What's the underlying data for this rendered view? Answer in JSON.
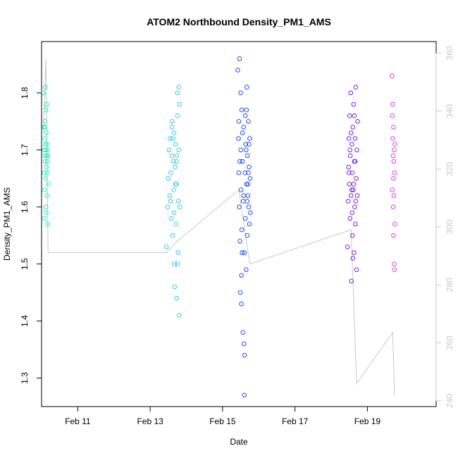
{
  "chart_data": {
    "type": "scatter",
    "title": "ATOM2 Northbound Density_PM1_AMS",
    "xlabel": "Date",
    "ylabel": "Density_PM1_AMS",
    "xlim": [
      10.0,
      20.9
    ],
    "ylim": [
      1.25,
      1.89
    ],
    "y2lim": [
      238,
      364
    ],
    "x_ticks": [
      {
        "value": 11,
        "label": "Feb 11"
      },
      {
        "value": 13,
        "label": "Feb 13"
      },
      {
        "value": 15,
        "label": "Feb 15"
      },
      {
        "value": 17,
        "label": "Feb 17"
      },
      {
        "value": 19,
        "label": "Feb 19"
      }
    ],
    "y_ticks": [
      "1.3",
      "1.4",
      "1.5",
      "1.6",
      "1.7",
      "1.8"
    ],
    "y2_ticks": [
      "240",
      "260",
      "280",
      "300",
      "320",
      "340",
      "360"
    ],
    "grid": false,
    "legend": "none",
    "point_style": "open-circle",
    "line_color": "#c8c8c8",
    "series": [
      {
        "color": "#1ff2b8",
        "points": [
          [
            10.05,
            1.8
          ],
          [
            10.06,
            1.74
          ],
          [
            10.07,
            1.7
          ],
          [
            10.07,
            1.66
          ],
          [
            10.08,
            1.58
          ],
          [
            10.08,
            1.63
          ],
          [
            10.09,
            1.69
          ],
          [
            10.09,
            1.72
          ],
          [
            10.1,
            1.68
          ],
          [
            10.1,
            1.75
          ],
          [
            10.11,
            1.71
          ],
          [
            10.11,
            1.65
          ],
          [
            10.12,
            1.6
          ],
          [
            10.12,
            1.7
          ],
          [
            10.13,
            1.73
          ],
          [
            10.13,
            1.67
          ],
          [
            10.14,
            1.69
          ],
          [
            10.14,
            1.78
          ],
          [
            10.15,
            1.62
          ],
          [
            10.15,
            1.71
          ],
          [
            10.16,
            1.66
          ],
          [
            10.17,
            1.7
          ],
          [
            10.17,
            1.57
          ],
          [
            10.18,
            1.69
          ],
          [
            10.19,
            1.64
          ],
          [
            10.1,
            1.81
          ],
          [
            10.12,
            1.77
          ],
          [
            10.09,
            1.74
          ],
          [
            10.13,
            1.59
          ],
          [
            10.16,
            1.68
          ]
        ]
      },
      {
        "color": "#33c9f0",
        "points": [
          [
            13.45,
            1.53
          ],
          [
            13.48,
            1.6
          ],
          [
            13.5,
            1.65
          ],
          [
            13.52,
            1.7
          ],
          [
            13.54,
            1.62
          ],
          [
            13.55,
            1.72
          ],
          [
            13.57,
            1.66
          ],
          [
            13.58,
            1.58
          ],
          [
            13.6,
            1.69
          ],
          [
            13.61,
            1.75
          ],
          [
            13.62,
            1.55
          ],
          [
            13.64,
            1.68
          ],
          [
            13.65,
            1.63
          ],
          [
            13.66,
            1.73
          ],
          [
            13.67,
            1.5
          ],
          [
            13.68,
            1.46
          ],
          [
            13.69,
            1.67
          ],
          [
            13.7,
            1.71
          ],
          [
            13.71,
            1.57
          ],
          [
            13.72,
            1.64
          ],
          [
            13.73,
            1.44
          ],
          [
            13.74,
            1.69
          ],
          [
            13.75,
            1.8
          ],
          [
            13.76,
            1.76
          ],
          [
            13.77,
            1.52
          ],
          [
            13.78,
            1.61
          ],
          [
            13.79,
            1.7
          ],
          [
            13.8,
            1.41
          ],
          [
            13.81,
            1.78
          ],
          [
            13.82,
            1.6
          ],
          [
            13.6,
            1.74
          ],
          [
            13.66,
            1.59
          ],
          [
            13.7,
            1.64
          ],
          [
            13.75,
            1.5
          ],
          [
            13.79,
            1.81
          ],
          [
            13.63,
            1.72
          ],
          [
            13.73,
            1.68
          ],
          [
            13.56,
            1.61
          ]
        ]
      },
      {
        "color": "#1f4ff2",
        "points": [
          [
            15.42,
            1.84
          ],
          [
            15.44,
            1.72
          ],
          [
            15.45,
            1.66
          ],
          [
            15.46,
            1.6
          ],
          [
            15.47,
            1.86
          ],
          [
            15.48,
            1.54
          ],
          [
            15.49,
            1.45
          ],
          [
            15.5,
            1.7
          ],
          [
            15.51,
            1.63
          ],
          [
            15.52,
            1.43
          ],
          [
            15.53,
            1.77
          ],
          [
            15.54,
            1.52
          ],
          [
            15.55,
            1.68
          ],
          [
            15.56,
            1.38
          ],
          [
            15.57,
            1.61
          ],
          [
            15.58,
            1.74
          ],
          [
            15.59,
            1.36
          ],
          [
            15.6,
            1.27
          ],
          [
            15.61,
            1.34
          ],
          [
            15.62,
            1.66
          ],
          [
            15.63,
            1.58
          ],
          [
            15.64,
            1.71
          ],
          [
            15.65,
            1.49
          ],
          [
            15.66,
            1.64
          ],
          [
            15.67,
            1.81
          ],
          [
            15.68,
            1.55
          ],
          [
            15.69,
            1.69
          ],
          [
            15.7,
            1.62
          ],
          [
            15.71,
            1.75
          ],
          [
            15.72,
            1.6
          ],
          [
            15.73,
            1.67
          ],
          [
            15.74,
            1.57
          ],
          [
            15.75,
            1.72
          ],
          [
            15.76,
            1.65
          ],
          [
            15.77,
            1.59
          ],
          [
            15.5,
            1.8
          ],
          [
            15.55,
            1.73
          ],
          [
            15.6,
            1.52
          ],
          [
            15.65,
            1.7
          ],
          [
            15.7,
            1.64
          ],
          [
            15.58,
            1.62
          ],
          [
            15.63,
            1.76
          ],
          [
            15.48,
            1.68
          ],
          [
            15.53,
            1.56
          ],
          [
            15.68,
            1.61
          ],
          [
            15.73,
            1.71
          ],
          [
            15.45,
            1.75
          ],
          [
            15.52,
            1.48
          ],
          [
            15.66,
            1.77
          ],
          [
            15.71,
            1.66
          ]
        ]
      },
      {
        "color": "#7a1fe8",
        "points": [
          [
            18.45,
            1.53
          ],
          [
            18.47,
            1.61
          ],
          [
            18.48,
            1.67
          ],
          [
            18.49,
            1.72
          ],
          [
            18.5,
            1.64
          ],
          [
            18.51,
            1.76
          ],
          [
            18.52,
            1.58
          ],
          [
            18.53,
            1.69
          ],
          [
            18.54,
            1.8
          ],
          [
            18.55,
            1.62
          ],
          [
            18.56,
            1.47
          ],
          [
            18.57,
            1.71
          ],
          [
            18.58,
            1.66
          ],
          [
            18.59,
            1.55
          ],
          [
            18.6,
            1.74
          ],
          [
            18.61,
            1.63
          ],
          [
            18.62,
            1.78
          ],
          [
            18.63,
            1.52
          ],
          [
            18.64,
            1.68
          ],
          [
            18.65,
            1.6
          ],
          [
            18.66,
            1.72
          ],
          [
            18.67,
            1.57
          ],
          [
            18.68,
            1.81
          ],
          [
            18.69,
            1.65
          ],
          [
            18.7,
            1.49
          ],
          [
            18.71,
            1.7
          ],
          [
            18.72,
            1.62
          ],
          [
            18.73,
            1.75
          ],
          [
            18.58,
            1.59
          ],
          [
            18.52,
            1.7
          ],
          [
            18.62,
            1.64
          ],
          [
            18.66,
            1.68
          ],
          [
            18.55,
            1.73
          ],
          [
            18.6,
            1.51
          ],
          [
            18.68,
            1.61
          ],
          [
            18.49,
            1.66
          ],
          [
            18.64,
            1.76
          ],
          [
            18.57,
            1.63
          ]
        ]
      },
      {
        "color": "#e03ce8",
        "points": [
          [
            19.68,
            1.83
          ],
          [
            19.69,
            1.76
          ],
          [
            19.7,
            1.72
          ],
          [
            19.71,
            1.69
          ],
          [
            19.72,
            1.65
          ],
          [
            19.73,
            1.62
          ],
          [
            19.74,
            1.5
          ],
          [
            19.75,
            1.49
          ],
          [
            19.76,
            1.57
          ],
          [
            19.7,
            1.78
          ],
          [
            19.72,
            1.74
          ],
          [
            19.74,
            1.7
          ],
          [
            19.71,
            1.6
          ],
          [
            19.73,
            1.68
          ],
          [
            19.75,
            1.66
          ],
          [
            19.69,
            1.63
          ],
          [
            19.76,
            1.71
          ],
          [
            19.72,
            1.55
          ]
        ]
      }
    ],
    "line": [
      [
        10.05,
        1.73
      ],
      [
        10.12,
        1.86
      ],
      [
        10.18,
        1.52
      ],
      [
        13.45,
        1.52
      ],
      [
        13.75,
        1.54
      ],
      [
        15.45,
        1.63
      ],
      [
        15.75,
        1.5
      ],
      [
        18.55,
        1.56
      ],
      [
        18.7,
        1.29
      ],
      [
        19.7,
        1.38
      ],
      [
        19.75,
        1.27
      ]
    ]
  }
}
